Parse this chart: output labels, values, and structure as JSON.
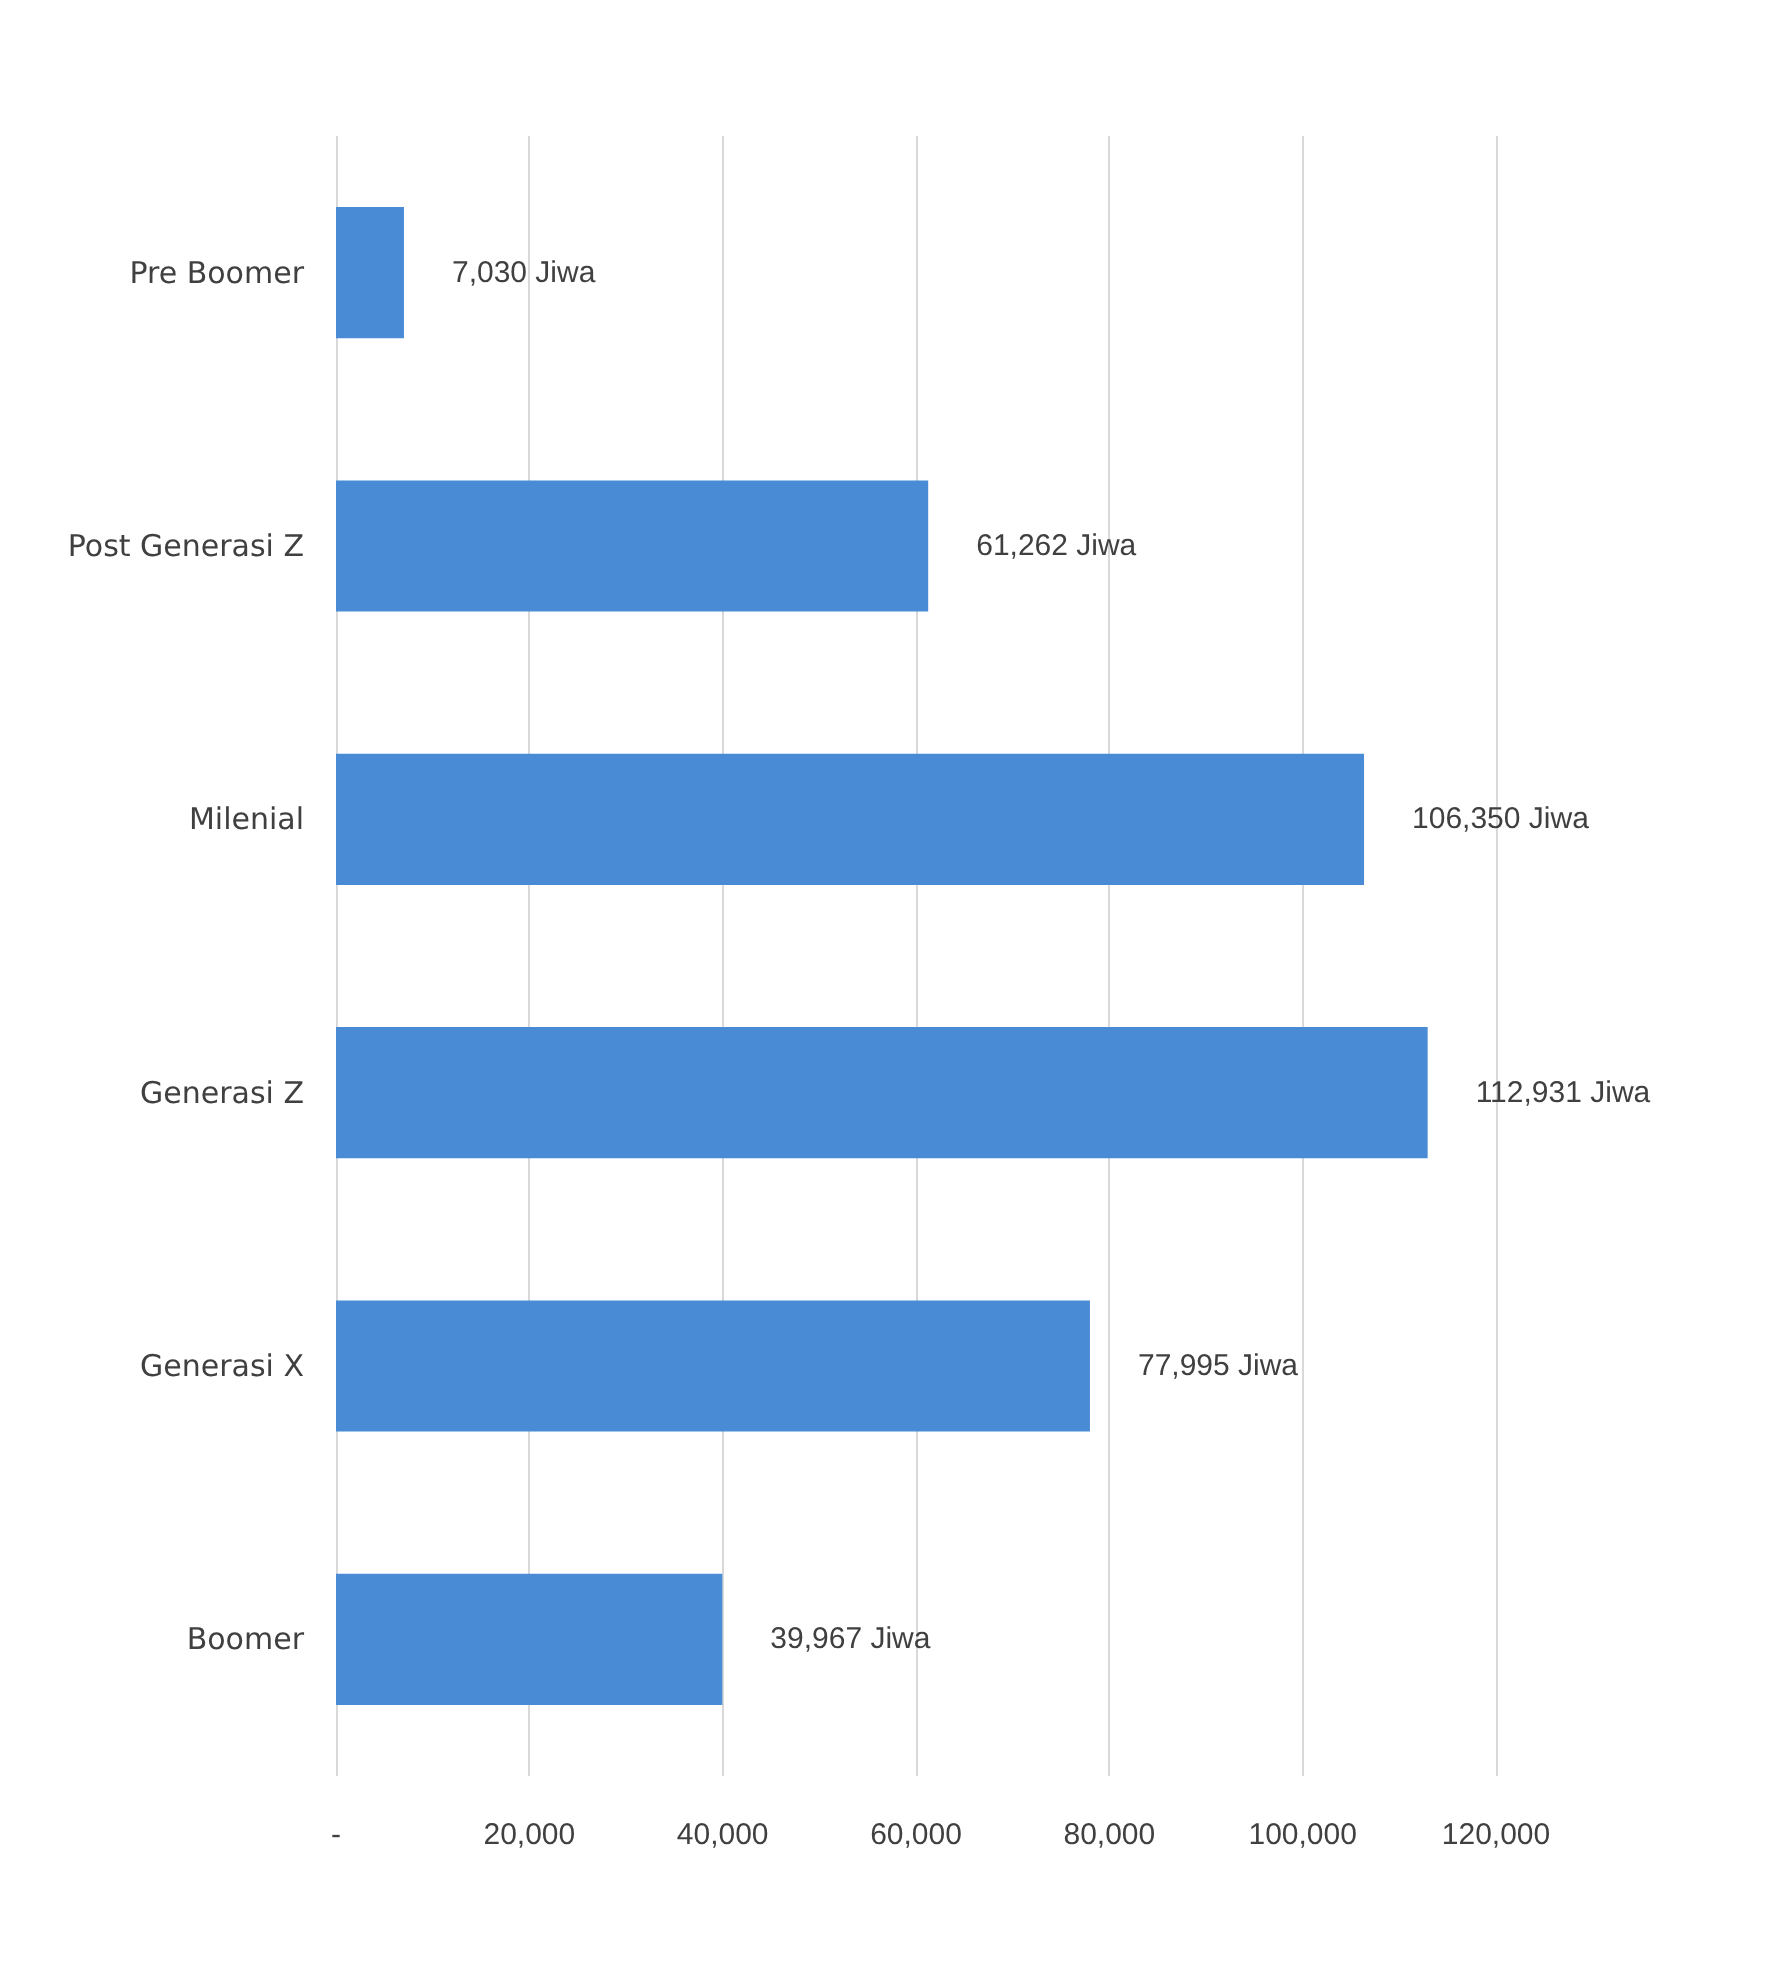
{
  "chart_data": {
    "type": "bar",
    "orientation": "horizontal",
    "categories": [
      "Pre Boomer",
      "Post Generasi Z",
      "Milenial",
      "Generasi Z",
      "Generasi X",
      "Boomer"
    ],
    "values": [
      7030,
      61262,
      106350,
      112931,
      77995,
      39967
    ],
    "value_labels": [
      "7,030 Jiwa",
      "61,262 Jiwa",
      "106,350 Jiwa",
      "112,931 Jiwa",
      "77,995 Jiwa",
      "39,967 Jiwa"
    ],
    "color": "#4a8bd6",
    "xlim": [
      0,
      120000
    ],
    "xticks": [
      {
        "value": 0,
        "label": "-"
      },
      {
        "value": 20000,
        "label": "20,000"
      },
      {
        "value": 40000,
        "label": "40,000"
      },
      {
        "value": 60000,
        "label": "60,000"
      },
      {
        "value": 80000,
        "label": "80,000"
      },
      {
        "value": 100000,
        "label": "100,000"
      },
      {
        "value": 120000,
        "label": "120,000"
      }
    ],
    "grid": "x"
  }
}
